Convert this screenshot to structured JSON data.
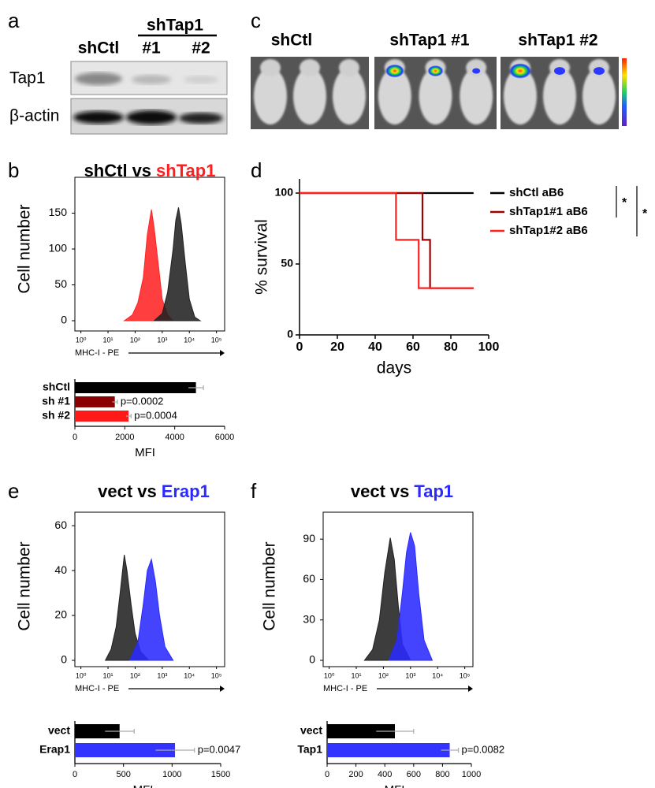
{
  "panel_labels": [
    "a",
    "b",
    "c",
    "d",
    "e",
    "f"
  ],
  "blot": {
    "group_label": "shTap1",
    "lanes": [
      "shCtl",
      "#1",
      "#2"
    ],
    "rows": [
      "Tap1",
      "β-actin"
    ]
  },
  "imaging": {
    "labels": [
      "shCtl",
      "shTap1 #1",
      "shTap1 #2"
    ]
  },
  "chart_data": [
    {
      "type": "histogram-overlay",
      "title": [
        "shCtl",
        "vs",
        "shTap1"
      ],
      "title_colors": [
        "#000000",
        "#000000",
        "#ff1f1f"
      ],
      "xlabel": "MHC-I - PE",
      "ylabel": "Cell number",
      "xscale": "log",
      "xlim": [
        0.6,
        200000
      ],
      "ylim": [
        0,
        200
      ],
      "xticks": [
        {
          "value": 1,
          "label": "10⁰"
        },
        {
          "value": 10,
          "label": "10¹"
        },
        {
          "value": 100,
          "label": "10²"
        },
        {
          "value": 1000,
          "label": "10³"
        },
        {
          "value": 10000,
          "label": "10⁴"
        },
        {
          "value": 100000,
          "label": "10⁵"
        }
      ],
      "yticks": [
        0,
        50,
        100,
        150
      ],
      "series": [
        {
          "name": "shTap1",
          "color": "#ff2424",
          "x": [
            40,
            79,
            126,
            200,
            282,
            398,
            501,
            708,
            1000,
            1585,
            2512
          ],
          "values": [
            0,
            8,
            25,
            60,
            120,
            155,
            130,
            80,
            30,
            8,
            0
          ]
        },
        {
          "name": "shCtl",
          "color": "#222222",
          "x": [
            501,
            1000,
            1585,
            2512,
            3162,
            3981,
            5012,
            7079,
            10000,
            15849,
            25119
          ],
          "values": [
            0,
            10,
            40,
            100,
            140,
            158,
            135,
            80,
            30,
            5,
            0
          ]
        }
      ]
    },
    {
      "type": "hbar",
      "categories": [
        "shCtl",
        "sh #1",
        "sh #2"
      ],
      "values": [
        4850,
        1600,
        2150
      ],
      "errors": [
        300,
        100,
        100
      ],
      "colors": [
        "#000000",
        "#8b0000",
        "#ff1a1a"
      ],
      "value_annotations": [
        null,
        "p=0.0002",
        "p=0.0004"
      ],
      "xlim": [
        0,
        6000
      ],
      "xticks": [
        0,
        2000,
        4000,
        6000
      ],
      "xlabel": "MFI"
    },
    {
      "type": "survival",
      "xlabel": "days",
      "ylabel": "% survival",
      "xlim": [
        0,
        100
      ],
      "ylim": [
        0,
        110
      ],
      "xticks": [
        0,
        20,
        40,
        60,
        80,
        100
      ],
      "yticks": [
        0,
        50,
        100
      ],
      "significance": [
        "*",
        "*"
      ],
      "series": [
        {
          "name": "shCtl aB6",
          "color": "#000000",
          "x": [
            0,
            92
          ],
          "values": [
            100,
            100
          ]
        },
        {
          "name": "shTap1#1 aB6",
          "color": "#a00000",
          "x": [
            0,
            65,
            65,
            69,
            69,
            92
          ],
          "values": [
            100,
            100,
            67,
            67,
            33,
            33
          ]
        },
        {
          "name": "shTap1#2 aB6",
          "color": "#ff2020",
          "x": [
            0,
            51,
            51,
            63,
            63,
            92
          ],
          "values": [
            100,
            100,
            67,
            67,
            33,
            33
          ]
        }
      ]
    },
    {
      "type": "histogram-overlay",
      "title": [
        "vect",
        "vs",
        "Erap1"
      ],
      "title_colors": [
        "#000000",
        "#000000",
        "#2a2aff"
      ],
      "xlabel": "MHC-I - PE",
      "ylabel": "Cell number",
      "xscale": "log",
      "xlim": [
        0.6,
        200000
      ],
      "ylim": [
        0,
        66
      ],
      "xticks": [
        {
          "value": 1,
          "label": "10⁰"
        },
        {
          "value": 10,
          "label": "10¹"
        },
        {
          "value": 100,
          "label": "10²"
        },
        {
          "value": 1000,
          "label": "10³"
        },
        {
          "value": 10000,
          "label": "10⁴"
        },
        {
          "value": 100000,
          "label": "10⁵"
        }
      ],
      "yticks": [
        0,
        20,
        40,
        60
      ],
      "series": [
        {
          "name": "vect",
          "color": "#222222",
          "x": [
            8,
            13,
            20,
            28,
            40,
            50,
            71,
            100,
            158,
            316
          ],
          "values": [
            0,
            5,
            15,
            30,
            47,
            40,
            25,
            12,
            4,
            0
          ]
        },
        {
          "name": "Erap1",
          "color": "#2a2aff",
          "x": [
            63,
            126,
            200,
            282,
            398,
            562,
            794,
            1259,
            2512
          ],
          "values": [
            0,
            8,
            25,
            40,
            45,
            35,
            20,
            6,
            0
          ]
        }
      ]
    },
    {
      "type": "hbar",
      "categories": [
        "vect",
        "Erap1"
      ],
      "values": [
        460,
        1030
      ],
      "errors": [
        150,
        200
      ],
      "colors": [
        "#000000",
        "#3333ff"
      ],
      "value_annotations": [
        null,
        "p=0.0047"
      ],
      "xlim": [
        0,
        1500
      ],
      "xticks": [
        0,
        500,
        1000,
        1500
      ],
      "xlabel": "MFI"
    },
    {
      "type": "histogram-overlay",
      "title": [
        "vect",
        "vs",
        "Tap1"
      ],
      "title_colors": [
        "#000000",
        "#000000",
        "#2a2aff"
      ],
      "xlabel": "MHC-I - PE",
      "ylabel": "Cell number",
      "xscale": "log",
      "xlim": [
        0.6,
        200000
      ],
      "ylim": [
        0,
        110
      ],
      "xticks": [
        {
          "value": 1,
          "label": "10⁰"
        },
        {
          "value": 10,
          "label": "10¹"
        },
        {
          "value": 100,
          "label": "10²"
        },
        {
          "value": 1000,
          "label": "10³"
        },
        {
          "value": 10000,
          "label": "10⁴"
        },
        {
          "value": 100000,
          "label": "10⁵"
        }
      ],
      "yticks": [
        0,
        30,
        60,
        90
      ],
      "series": [
        {
          "name": "vect",
          "color": "#222222",
          "x": [
            20,
            40,
            71,
            112,
            178,
            251,
            355,
            501,
            1000
          ],
          "values": [
            0,
            8,
            30,
            65,
            91,
            75,
            40,
            12,
            0
          ]
        },
        {
          "name": "Tap1",
          "color": "#2a2aff",
          "x": [
            158,
            316,
            501,
            708,
            1000,
            1413,
            1995,
            3162,
            6310
          ],
          "values": [
            0,
            15,
            50,
            80,
            95,
            85,
            50,
            15,
            0
          ]
        }
      ]
    },
    {
      "type": "hbar",
      "categories": [
        "vect",
        "Tap1"
      ],
      "values": [
        470,
        850
      ],
      "errors": [
        130,
        60
      ],
      "colors": [
        "#000000",
        "#3333ff"
      ],
      "value_annotations": [
        null,
        "p=0.0082"
      ],
      "xlim": [
        0,
        1000
      ],
      "xticks": [
        0,
        200,
        400,
        600,
        800,
        1000
      ],
      "xlabel": "MFI"
    }
  ]
}
